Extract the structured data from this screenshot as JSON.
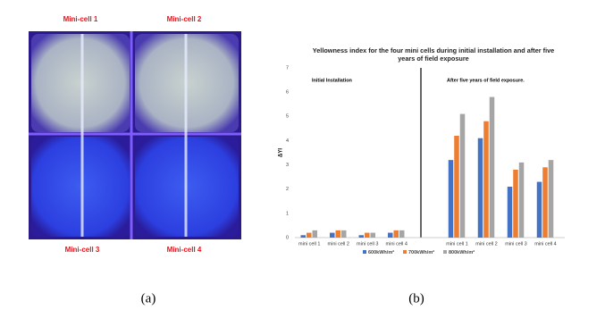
{
  "image": {
    "labels": [
      "Mini-cell 1",
      "Mini-cell 2",
      "Mini-cell 3",
      "Mini-cell 4"
    ],
    "caption": "(a)"
  },
  "chart_data": {
    "type": "bar",
    "title": "Yellowness index for the four mini cells during initial installation and after five years of field exposure",
    "annotations": [
      "Initial Installation",
      "After five years of field exposure."
    ],
    "y_label": "ΔYI",
    "categories": [
      "mini cell 1",
      "mini cell 2",
      "mini cell 3",
      "mini cell 4",
      "mini cell 1",
      "mini cell 2",
      "mini cell 3",
      "mini cell 4"
    ],
    "series": [
      {
        "name": "600kWh/m²",
        "color": "#4472c4",
        "values": [
          0.1,
          0.2,
          0.1,
          0.2,
          3.2,
          4.1,
          2.1,
          2.3
        ]
      },
      {
        "name": "700kWh/m²",
        "color": "#ed7d31",
        "values": [
          0.2,
          0.3,
          0.2,
          0.3,
          4.2,
          4.8,
          2.8,
          2.9
        ]
      },
      {
        "name": "800kWh/m²",
        "color": "#a5a5a5",
        "values": [
          0.3,
          0.3,
          0.2,
          0.3,
          5.1,
          5.8,
          3.1,
          3.2
        ]
      }
    ],
    "ylim": [
      0,
      7
    ],
    "yticks": [
      0,
      1,
      2,
      3,
      4,
      5,
      6,
      7
    ],
    "grid": false,
    "legend": "bottom",
    "caption": "(b)"
  }
}
